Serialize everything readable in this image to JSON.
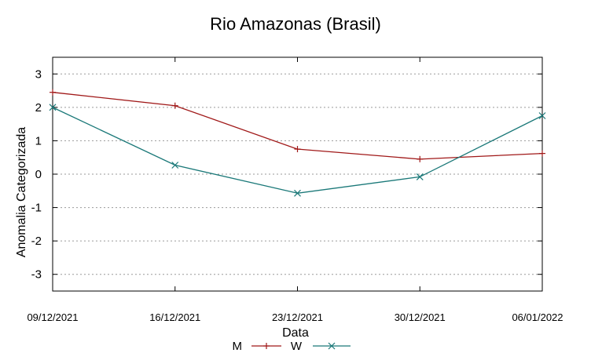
{
  "chart_data": {
    "type": "line",
    "title": "Rio Amazonas (Brasil)",
    "xlabel": "Data",
    "ylabel": "Anomalia Categorizada",
    "categories": [
      "09/12/2021",
      "16/12/2021",
      "23/12/2021",
      "30/12/2021",
      "06/01/2022"
    ],
    "ylim": [
      -3.5,
      3.5
    ],
    "yticks": [
      "3",
      "2",
      "1",
      "0",
      "-1",
      "-2",
      "-3"
    ],
    "ytick_values": [
      3,
      2,
      1,
      0,
      -1,
      -2,
      -3
    ],
    "grid": true,
    "legend_position": "bottom-center",
    "series": [
      {
        "name": "M",
        "color": "#a01818",
        "marker": "plus",
        "values": [
          2.45,
          2.05,
          0.75,
          0.45,
          0.62
        ]
      },
      {
        "name": "W",
        "color": "#1a7878",
        "marker": "cross",
        "values": [
          2.0,
          0.27,
          -0.57,
          -0.08,
          1.75
        ]
      }
    ]
  }
}
